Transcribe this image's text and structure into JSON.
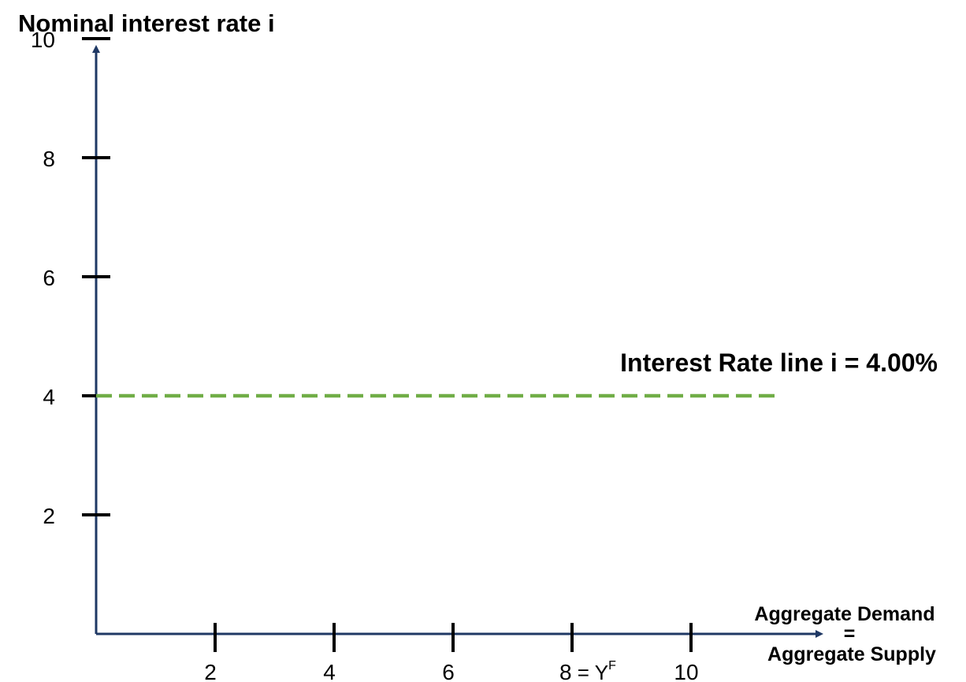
{
  "chart_data": {
    "type": "line",
    "title": "",
    "ylabel": "Nominal interest rate i",
    "xlabel_top": "Aggregate Demand",
    "xlabel_mid": "=",
    "xlabel_bottom": "Aggregate Supply",
    "x_ticks": [
      {
        "value": 2,
        "label": "2"
      },
      {
        "value": 4,
        "label": "4"
      },
      {
        "value": 6,
        "label": "6"
      },
      {
        "value": 8,
        "label": "8",
        "suffix": " = Y",
        "superscript": "F"
      },
      {
        "value": 10,
        "label": "10"
      }
    ],
    "y_ticks": [
      {
        "value": 2,
        "label": "2"
      },
      {
        "value": 4,
        "label": "4"
      },
      {
        "value": 6,
        "label": "6"
      },
      {
        "value": 8,
        "label": "8"
      },
      {
        "value": 10,
        "label": "10"
      }
    ],
    "xlim": [
      0,
      12
    ],
    "ylim": [
      0,
      11
    ],
    "grid": false,
    "series": [
      {
        "name": "Interest Rate line i = 4.00%",
        "style": "dashed",
        "color": "#70ad47",
        "x": [
          0,
          11.5
        ],
        "y": [
          4,
          4
        ]
      }
    ],
    "colors": {
      "axis": "#1f3864",
      "tick": "#000000"
    }
  }
}
